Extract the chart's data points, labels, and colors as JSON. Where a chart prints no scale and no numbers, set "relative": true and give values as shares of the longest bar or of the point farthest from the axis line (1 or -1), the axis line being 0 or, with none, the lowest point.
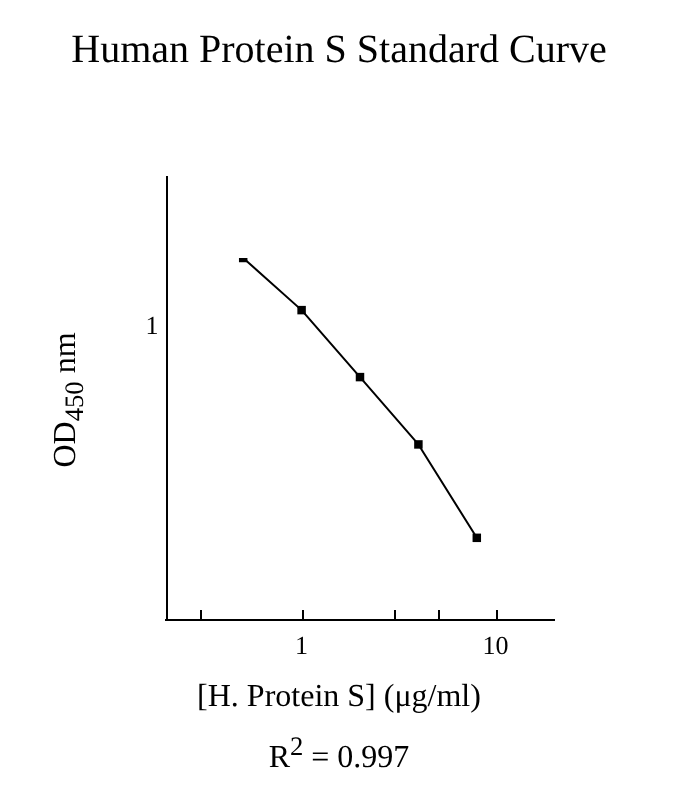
{
  "chart_data": {
    "type": "line",
    "title": "Human Protein S Standard Curve",
    "xlabel": "[H. Protein S] (μg/ml)",
    "ylabel": "OD$_{450}$ nm",
    "annotations": [
      "1",
      "R$^{2}$ = 0.997"
    ],
    "relative": true,
    "x": [
      0.5,
      1,
      2,
      4,
      8
    ],
    "series": [
      {
        "color": "#000000",
        "values": [
          1,
          0.856,
          0.671,
          0.485,
          0.227
        ]
      }
    ],
    "log": "x",
    "marker": "square",
    "line_style": "solid",
    "xlim": [
      0.2,
      20
    ],
    "xticks": [
      {
        "value": 0.3,
        "label": null
      },
      1,
      {
        "value": 3,
        "label": null
      },
      {
        "value": 5,
        "label": null
      },
      10
    ],
    "legend": false
  }
}
